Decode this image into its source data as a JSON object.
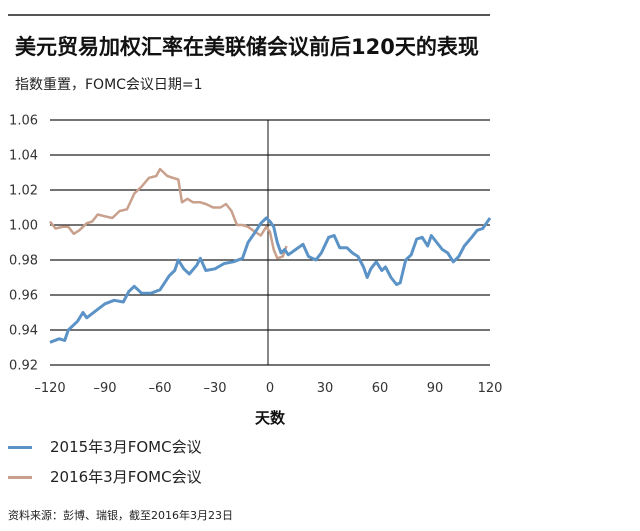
{
  "header": {
    "title": "美元贸易加权汇率在美联储会议前后120天的表现",
    "subtitle": "指数重置，FOMC会议日期=1"
  },
  "axis": {
    "xlabel": "天数",
    "yticks": [
      "1.06",
      "1.04",
      "1.02",
      "1.00",
      "0.98",
      "0.96",
      "0.94",
      "0.92"
    ],
    "xticks": [
      "–120",
      "–90",
      "–60",
      "–30",
      "0",
      "30",
      "60",
      "90",
      "120"
    ]
  },
  "legend": [
    {
      "label": "2015年3月FOMC会议",
      "color": "#5b93c7"
    },
    {
      "label": "2016年3月FOMC会议",
      "color": "#c9a08c"
    }
  ],
  "source": "资料来源：彭博、瑞银，截至2016年3月23日",
  "chart_data": {
    "type": "line",
    "title": "美元贸易加权汇率在美联储会议前后120天的表现",
    "subtitle": "指数重置，FOMC会议日期=1",
    "xlabel": "天数",
    "ylabel": "",
    "xlim": [
      -120,
      120
    ],
    "ylim": [
      0.92,
      1.06
    ],
    "xticks": [
      -120,
      -90,
      -60,
      -30,
      0,
      30,
      60,
      90,
      120
    ],
    "yticks": [
      0.92,
      0.94,
      0.96,
      0.98,
      1.0,
      1.02,
      1.04,
      1.06
    ],
    "grid": "horizontal",
    "legend_position": "bottom",
    "series": [
      {
        "name": "2015年3月FOMC会议",
        "color": "#5b93c7",
        "x": [
          -120,
          -115,
          -112,
          -110,
          -105,
          -102,
          -100,
          -95,
          -90,
          -85,
          -80,
          -77,
          -74,
          -70,
          -65,
          -60,
          -55,
          -52,
          -50,
          -47,
          -44,
          -40,
          -38,
          -35,
          -30,
          -25,
          -20,
          -15,
          -12,
          -8,
          -5,
          -2,
          0,
          2,
          4,
          6,
          8,
          10,
          14,
          18,
          21,
          25,
          28,
          32,
          35,
          38,
          42,
          45,
          48,
          51,
          53,
          55,
          58,
          61,
          63,
          66,
          69,
          71,
          74,
          77,
          80,
          83,
          86,
          88,
          91,
          94,
          97,
          100,
          103,
          106,
          110,
          113,
          116,
          118,
          120
        ],
        "values": [
          0.933,
          0.935,
          0.934,
          0.94,
          0.945,
          0.95,
          0.947,
          0.951,
          0.955,
          0.957,
          0.956,
          0.962,
          0.965,
          0.961,
          0.961,
          0.963,
          0.971,
          0.974,
          0.98,
          0.975,
          0.972,
          0.977,
          0.981,
          0.974,
          0.975,
          0.978,
          0.979,
          0.981,
          0.99,
          0.996,
          1.001,
          1.004,
          1.002,
          0.999,
          0.99,
          0.984,
          0.986,
          0.983,
          0.986,
          0.989,
          0.982,
          0.98,
          0.984,
          0.993,
          0.994,
          0.987,
          0.987,
          0.984,
          0.982,
          0.976,
          0.97,
          0.975,
          0.979,
          0.974,
          0.976,
          0.97,
          0.966,
          0.967,
          0.98,
          0.983,
          0.992,
          0.993,
          0.988,
          0.994,
          0.99,
          0.986,
          0.984,
          0.979,
          0.982,
          0.988,
          0.993,
          0.997,
          0.998,
          1.001,
          1.004
        ]
      },
      {
        "name": "2016年3月FOMC会议",
        "color": "#c9a08c",
        "x": [
          -120,
          -117,
          -113,
          -110,
          -107,
          -104,
          -100,
          -97,
          -94,
          -90,
          -86,
          -82,
          -78,
          -74,
          -70,
          -66,
          -62,
          -60,
          -56,
          -53,
          -50,
          -48,
          -45,
          -42,
          -38,
          -35,
          -31,
          -27,
          -24,
          -21,
          -18,
          -15,
          -12,
          -8,
          -5,
          -2,
          0,
          2,
          4,
          7,
          9
        ],
        "values": [
          1.002,
          0.998,
          0.999,
          0.999,
          0.995,
          0.997,
          1.001,
          1.002,
          1.006,
          1.005,
          1.004,
          1.008,
          1.009,
          1.018,
          1.022,
          1.027,
          1.028,
          1.032,
          1.028,
          1.027,
          1.026,
          1.013,
          1.015,
          1.013,
          1.013,
          1.012,
          1.01,
          1.01,
          1.012,
          1.008,
          1.0,
          1.0,
          0.999,
          0.996,
          0.994,
          0.999,
          0.996,
          0.986,
          0.981,
          0.982,
          0.988
        ]
      }
    ]
  }
}
